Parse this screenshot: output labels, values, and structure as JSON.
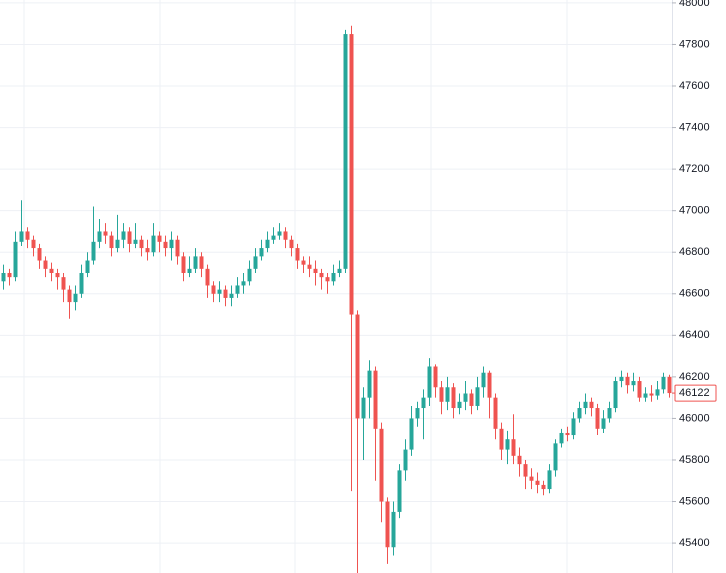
{
  "chart_data": {
    "type": "candlestick",
    "ylim": [
      45256,
      48014
    ],
    "yticks": [
      45400,
      45600,
      45800,
      46000,
      46200,
      46400,
      46600,
      46800,
      47000,
      47200,
      47400,
      47600,
      47800,
      48000
    ],
    "grid": true,
    "up_color": "#26a69a",
    "down_color": "#ef5350",
    "last_price": 46122,
    "open": [
      46660,
      46700,
      46680,
      46850,
      46900,
      46860,
      46820,
      46760,
      46720,
      46700,
      46680,
      46620,
      46560,
      46600,
      46700,
      46760,
      46850,
      46900,
      46880,
      46820,
      46860,
      46900,
      46840,
      46860,
      46820,
      46800,
      46880,
      46850,
      46820,
      46860,
      46780,
      46700,
      46720,
      46780,
      46720,
      46640,
      46600,
      46620,
      46580,
      46600,
      46640,
      46660,
      46720,
      46780,
      46820,
      46860,
      46880,
      46900,
      46860,
      46820,
      46760,
      46740,
      46720,
      46700,
      46680,
      46660,
      46700,
      46720,
      47850,
      46500,
      46000,
      46100,
      46230,
      45950,
      45600,
      45380,
      45550,
      45750,
      45850,
      46000,
      46050,
      46100,
      46250,
      46150,
      46080,
      46150,
      46050,
      46080,
      46120,
      46060,
      46150,
      46220,
      46100,
      45950,
      45850,
      45900,
      45820,
      45780,
      45720,
      45700,
      45680,
      45660,
      45750,
      45880,
      45930,
      45920,
      46000,
      46050,
      46080,
      46050,
      45950,
      46000,
      46050,
      46180,
      46200,
      46160,
      46180,
      46100,
      46120,
      46110,
      46140,
      46200
    ],
    "high": [
      46740,
      46720,
      46900,
      47050,
      46920,
      46880,
      46840,
      46780,
      46750,
      46720,
      46700,
      46640,
      46640,
      46740,
      46800,
      47020,
      46960,
      46940,
      46900,
      46980,
      46940,
      46920,
      46940,
      46880,
      46860,
      46940,
      46900,
      46880,
      46900,
      46880,
      46800,
      46780,
      46820,
      46800,
      46740,
      46660,
      46660,
      46640,
      46640,
      46680,
      46700,
      46760,
      46820,
      46860,
      46900,
      46920,
      46940,
      46920,
      46880,
      46840,
      46780,
      46780,
      46760,
      46720,
      46700,
      46740,
      46760,
      47870,
      47890,
      46520,
      46150,
      46280,
      46250,
      45980,
      45620,
      45600,
      45780,
      45900,
      46060,
      46080,
      46140,
      46290,
      46260,
      46180,
      46200,
      46170,
      46120,
      46180,
      46140,
      46200,
      46250,
      46230,
      46120,
      45980,
      45940,
      46020,
      45860,
      45800,
      45760,
      45740,
      45700,
      45780,
      45900,
      45950,
      45960,
      46030,
      46080,
      46120,
      46100,
      46070,
      46040,
      46080,
      46200,
      46230,
      46220,
      46220,
      46200,
      46150,
      46160,
      46180,
      46220,
      46210
    ],
    "low": [
      46620,
      46640,
      46660,
      46830,
      46820,
      46780,
      46720,
      46680,
      46660,
      46620,
      46560,
      46480,
      46520,
      46580,
      46680,
      46740,
      46820,
      46840,
      46780,
      46800,
      46820,
      46800,
      46820,
      46780,
      46760,
      46780,
      46800,
      46780,
      46760,
      46740,
      46660,
      46680,
      46700,
      46680,
      46580,
      46560,
      46560,
      46540,
      46540,
      46580,
      46600,
      46640,
      46700,
      46760,
      46800,
      46840,
      46860,
      46820,
      46780,
      46720,
      46700,
      46680,
      46640,
      46620,
      46600,
      46640,
      46680,
      46700,
      45650,
      45250,
      45800,
      46000,
      45700,
      45500,
      45300,
      45340,
      45520,
      45700,
      45820,
      45960,
      45900,
      46060,
      46100,
      46020,
      46040,
      46000,
      46020,
      46040,
      46020,
      46040,
      46100,
      46000,
      45900,
      45800,
      45780,
      45780,
      45720,
      45660,
      45660,
      45640,
      45630,
      45640,
      45720,
      45860,
      45890,
      45900,
      45980,
      46020,
      46010,
      45920,
      45930,
      45980,
      46030,
      46150,
      46120,
      46130,
      46080,
      46080,
      46080,
      46090,
      46120,
      46100
    ],
    "close": [
      46700,
      46680,
      46850,
      46900,
      46860,
      46820,
      46760,
      46720,
      46700,
      46680,
      46620,
      46560,
      46600,
      46700,
      46760,
      46850,
      46900,
      46880,
      46820,
      46860,
      46900,
      46840,
      46860,
      46820,
      46800,
      46880,
      46850,
      46820,
      46860,
      46780,
      46700,
      46720,
      46780,
      46720,
      46640,
      46600,
      46620,
      46580,
      46600,
      46640,
      46660,
      46720,
      46780,
      46820,
      46860,
      46880,
      46900,
      46860,
      46820,
      46760,
      46740,
      46720,
      46700,
      46680,
      46660,
      46700,
      46720,
      47850,
      46500,
      46000,
      46100,
      46230,
      45950,
      45600,
      45380,
      45550,
      45750,
      45850,
      46000,
      46050,
      46100,
      46250,
      46150,
      46080,
      46150,
      46050,
      46080,
      46120,
      46060,
      46150,
      46220,
      46100,
      45950,
      45850,
      45900,
      45820,
      45780,
      45720,
      45700,
      45680,
      45660,
      45750,
      45880,
      45930,
      45920,
      46000,
      46050,
      46080,
      46050,
      45950,
      46000,
      46050,
      46180,
      46200,
      46160,
      46180,
      46100,
      46120,
      46110,
      46140,
      46200,
      46122
    ]
  }
}
